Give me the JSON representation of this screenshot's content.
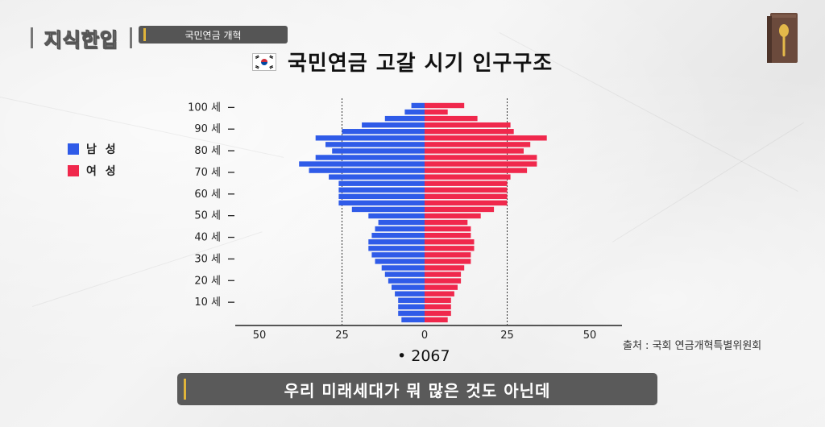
{
  "header": {
    "logo_text": "지식한입",
    "category": "국민연금 개혁",
    "title": "국민연금 고갈 시기 인구구조"
  },
  "legend": [
    {
      "label": "남 성",
      "color": "#2f5be8"
    },
    {
      "label": "여 성",
      "color": "#f0284c"
    }
  ],
  "source": "출처 : 국회 연금개혁특별위원회",
  "year_label": "• 2067",
  "subtitle": "우리 미래세대가 뭐 많은 것도 아닌데",
  "chart_data": {
    "type": "bar",
    "orientation": "horizontal-pyramid",
    "xlim": [
      -50,
      50
    ],
    "x_ticks": [
      {
        "value": -50,
        "label": "50"
      },
      {
        "value": -25,
        "label": "25"
      },
      {
        "value": 0,
        "label": "0"
      },
      {
        "value": 25,
        "label": "25"
      },
      {
        "value": 50,
        "label": "50"
      }
    ],
    "reference_lines": [
      -25,
      25
    ],
    "y_ticks": [
      {
        "age": 100,
        "label": "100 세"
      },
      {
        "age": 90,
        "label": "90 세"
      },
      {
        "age": 80,
        "label": "80 세"
      },
      {
        "age": 70,
        "label": "70 세"
      },
      {
        "age": 60,
        "label": "60 세"
      },
      {
        "age": 50,
        "label": "50 세"
      },
      {
        "age": 40,
        "label": "40 세"
      },
      {
        "age": 30,
        "label": "30 세"
      },
      {
        "age": 20,
        "label": "20 세"
      },
      {
        "age": 10,
        "label": "10 세"
      }
    ],
    "age_groups": [
      102,
      99,
      96,
      93,
      90,
      87,
      84,
      81,
      78,
      75,
      72,
      69,
      66,
      63,
      60,
      57,
      54,
      51,
      48,
      45,
      42,
      39,
      36,
      33,
      30,
      27,
      24,
      21,
      18,
      15,
      12,
      9,
      6,
      3
    ],
    "series": [
      {
        "name": "남 성",
        "color": "#2f5be8",
        "values": [
          4,
          6,
          12,
          19,
          25,
          33,
          30,
          28,
          33,
          38,
          35,
          29,
          26,
          26,
          26,
          26,
          22,
          17,
          14,
          15,
          16,
          17,
          17,
          16,
          15,
          13,
          12,
          11,
          10,
          9,
          8,
          8,
          8,
          7
        ]
      },
      {
        "name": "여 성",
        "color": "#f0284c",
        "values": [
          12,
          7,
          16,
          26,
          27,
          37,
          32,
          30,
          34,
          34,
          31,
          26,
          25,
          25,
          25,
          25,
          21,
          17,
          13,
          14,
          14,
          15,
          15,
          14,
          14,
          12,
          11,
          11,
          10,
          9,
          8,
          8,
          8,
          7
        ]
      }
    ]
  }
}
